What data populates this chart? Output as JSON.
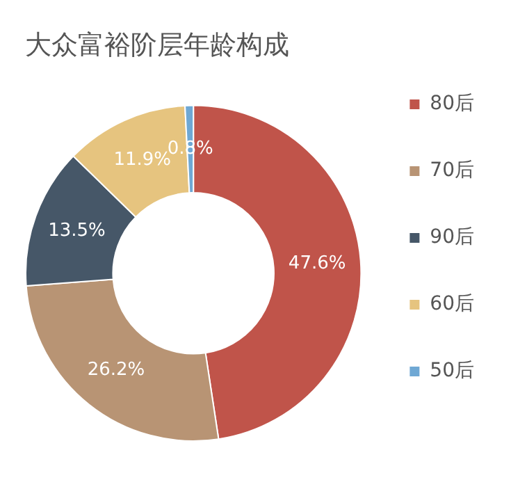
{
  "chart_data": {
    "type": "donut",
    "title": "大众富裕阶层年龄构成",
    "categories": [
      "80后",
      "70后",
      "90后",
      "60后",
      "50后"
    ],
    "values": [
      47.6,
      26.2,
      13.5,
      11.9,
      0.8
    ],
    "value_labels": [
      "47.6%",
      "26.2%",
      "13.5%",
      "11.9%",
      "0.8%"
    ],
    "colors": [
      "#c0544a",
      "#b89474",
      "#465768",
      "#e6c47f",
      "#6fa8d4"
    ],
    "legend": "right"
  }
}
